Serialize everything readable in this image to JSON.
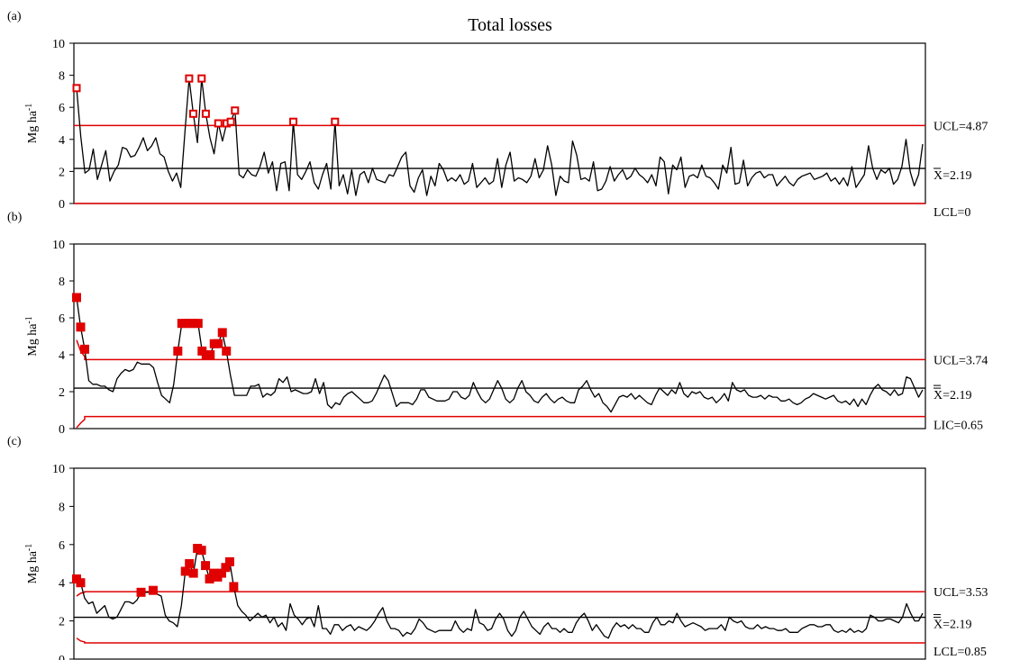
{
  "title": "Total losses",
  "colors": {
    "data": "#000000",
    "limit": "#e00000",
    "center": "#000000",
    "ooc_marker": "#e00000"
  },
  "chart_data": [
    {
      "panel_label": "(a)",
      "type": "line",
      "ylabel": "Mg ha-1",
      "ylim": [
        0,
        10
      ],
      "yticks": [
        "0",
        "2",
        "4",
        "6",
        "8",
        "10"
      ],
      "ucl": 4.87,
      "center": 2.19,
      "lcl": 0,
      "ucl_label": "UCL=4.87",
      "center_label": "X=2.19",
      "lcl_label": "LCL=0",
      "marker_style": "hollow-square",
      "values": [
        7.2,
        4.2,
        1.9,
        2.1,
        3.4,
        1.5,
        2.4,
        3.3,
        1.4,
        2,
        2.4,
        3.5,
        3.4,
        2.9,
        3,
        3.5,
        4.1,
        3.3,
        3.6,
        4.1,
        3.1,
        2.9,
        2,
        1.4,
        1.9,
        1,
        4.5,
        7.8,
        5.6,
        3.8,
        7.8,
        5.6,
        4.1,
        3.1,
        5,
        3.9,
        5,
        5.1,
        5.8,
        1.8,
        1.6,
        2.1,
        1.8,
        1.7,
        2.3,
        3.2,
        1.9,
        2.6,
        0.8,
        2.5,
        2.6,
        0.8,
        5.1,
        1.8,
        1.5,
        2,
        2.6,
        1.3,
        0.9,
        1.8,
        2.5,
        0.9,
        5.1,
        1.1,
        1.8,
        0.6,
        2.1,
        0.5,
        1.8,
        2,
        1.3,
        2.2,
        1.5,
        1.4,
        1.3,
        1.8,
        1.7,
        2.3,
        2.9,
        3.2,
        1.1,
        0.7,
        1.6,
        2.1,
        0.5,
        1.7,
        1.1,
        2.5,
        2.1,
        1.4,
        1.6,
        1.4,
        1.8,
        1.2,
        1.4,
        2.5,
        1,
        1.3,
        1.6,
        1.2,
        1.4,
        2.8,
        1,
        2.4,
        3.2,
        1.4,
        1.6,
        1.5,
        1.3,
        1.7,
        2.8,
        1.6,
        2.1,
        3.6,
        2.4,
        0.5,
        1.7,
        1.4,
        1.3,
        3.9,
        3,
        1.5,
        1.6,
        1.4,
        2.6,
        0.8,
        0.9,
        1.4,
        2.3,
        1.4,
        1.8,
        2.1,
        1.5,
        1.7,
        2.2,
        1.8,
        1.6,
        1.3,
        1.8,
        1.1,
        2.9,
        2.6,
        0.6,
        2.4,
        2.1,
        2.9,
        1,
        1.7,
        1.8,
        1.6,
        2.4,
        1.7,
        1.6,
        1.3,
        0.9,
        2.4,
        1.9,
        3.5,
        1.2,
        1.3,
        2.7,
        1.1,
        1.6,
        1.9,
        2,
        1.6,
        1.8,
        1.8,
        1.1,
        1.4,
        1.7,
        1.3,
        1.1,
        1.5,
        1.7,
        1.8,
        1.9,
        1.5,
        1.6,
        1.7,
        1.9,
        1.4,
        1.6,
        1.2,
        1.6,
        1.1,
        2.3,
        1,
        1.4,
        1.8,
        3.6,
        2.2,
        1.5,
        2.1,
        1.9,
        2.2,
        1.2,
        1.5,
        2.3,
        4,
        2,
        1.1,
        1.8,
        3.7
      ],
      "out_of_control_indices": [
        0,
        27,
        28,
        30,
        31,
        34,
        36,
        37,
        38,
        52,
        62
      ]
    },
    {
      "panel_label": "(b)",
      "type": "line",
      "ylabel": "Mg ha-1",
      "ylim": [
        0,
        10
      ],
      "yticks": [
        "0",
        "2",
        "4",
        "6",
        "8",
        "10"
      ],
      "ucl": 3.74,
      "center": 2.19,
      "lcl": 0.65,
      "ucl_label": "UCL=3.74",
      "center_label": "X=2.19",
      "lcl_label": "LIC=0.65",
      "ucl_start_curve": [
        4.8,
        4.2,
        3.9
      ],
      "lcl_start_curve": [
        0.05,
        0.3,
        0.5
      ],
      "marker_style": "filled-square",
      "values": [
        7.1,
        5.5,
        4.3,
        2.6,
        2.4,
        2.4,
        2.3,
        2.3,
        2.1,
        2,
        2.7,
        3,
        3.2,
        3.1,
        3.2,
        3.6,
        3.5,
        3.5,
        3.5,
        3.3,
        2.5,
        1.8,
        1.6,
        1.4,
        2.4,
        4.2,
        5.7,
        5.7,
        5.7,
        5.7,
        5.7,
        4.2,
        4.0,
        4.0,
        4.6,
        4.6,
        5.2,
        4.2,
        2.9,
        1.8,
        1.8,
        1.8,
        1.8,
        2.3,
        2.3,
        2.4,
        1.7,
        1.9,
        1.8,
        2,
        2.7,
        2.5,
        2.8,
        2,
        2.1,
        2,
        1.9,
        1.9,
        2,
        2.7,
        1.9,
        2.5,
        1.3,
        1.1,
        1.4,
        1.3,
        1.7,
        1.9,
        2,
        1.8,
        1.6,
        1.4,
        1.4,
        1.5,
        1.9,
        2.4,
        2.9,
        2.6,
        1.9,
        1.2,
        1.4,
        1.4,
        1.4,
        1.3,
        1.6,
        2.1,
        2.1,
        1.7,
        1.6,
        1.5,
        1.5,
        1.5,
        1.6,
        2,
        2,
        1.7,
        1.6,
        1.8,
        2.5,
        2,
        1.6,
        1.4,
        1.6,
        2.1,
        2.6,
        2.2,
        1.6,
        1.4,
        1.6,
        2.2,
        2.6,
        2,
        1.8,
        1.5,
        1.4,
        1.7,
        1.9,
        1.6,
        1.4,
        1.6,
        1.7,
        1.5,
        1.4,
        1.4,
        2.1,
        2.3,
        2.6,
        2.1,
        1.7,
        1.9,
        1.4,
        1.2,
        0.9,
        1.3,
        1.7,
        1.8,
        1.7,
        1.9,
        1.6,
        1.8,
        1.6,
        1.4,
        1.3,
        1.8,
        2.2,
        2,
        1.8,
        2.1,
        1.9,
        2.5,
        1.9,
        1.7,
        2,
        1.9,
        2,
        1.7,
        1.6,
        1.7,
        1.4,
        1.6,
        1.9,
        1.5,
        2.5,
        2.1,
        2,
        2.1,
        1.8,
        1.7,
        1.7,
        1.8,
        1.6,
        1.8,
        1.7,
        1.7,
        1.5,
        1.5,
        1.6,
        1.4,
        1.3,
        1.4,
        1.6,
        1.7,
        1.9,
        1.8,
        1.7,
        1.6,
        1.7,
        1.8,
        1.5,
        1.4,
        1.5,
        1.3,
        1.6,
        1.2,
        1.6,
        1.3,
        1.8,
        2.2,
        2.4,
        2.1,
        2,
        1.8,
        2.1,
        1.8,
        1.9,
        2.8,
        2.7,
        2.2,
        1.7,
        2.1
      ],
      "out_of_control_indices": [
        0,
        1,
        2,
        25,
        26,
        27,
        28,
        29,
        30,
        31,
        32,
        33,
        34,
        35,
        36,
        37
      ]
    },
    {
      "panel_label": "(c)",
      "type": "line",
      "ylabel": "Mg ha-1",
      "ylim": [
        0,
        10
      ],
      "yticks": [
        "0",
        "2",
        "4",
        "6",
        "8",
        "10"
      ],
      "ucl": 3.53,
      "center": 2.19,
      "lcl": 0.85,
      "ucl_label": "UCL=3.53",
      "center_label": "X=2.19",
      "lcl_label": "LCL=0.85",
      "ucl_start_curve": [
        3.3,
        3.45,
        3.5
      ],
      "lcl_start_curve": [
        1.1,
        0.95,
        0.9
      ],
      "marker_style": "filled-square",
      "values": [
        4.2,
        4.0,
        3.2,
        2.9,
        3.0,
        2.4,
        2.6,
        2.8,
        2.2,
        2.1,
        2.2,
        2.6,
        3.0,
        3.0,
        2.9,
        3.1,
        3.5,
        3.5,
        3.5,
        3.6,
        3.4,
        3.3,
        2.3,
        2.0,
        1.9,
        1.7,
        2.8,
        4.6,
        5.0,
        4.5,
        5.8,
        5.7,
        4.9,
        4.2,
        4.5,
        4.3,
        4.5,
        4.8,
        5.1,
        3.8,
        2.8,
        2.5,
        2.3,
        2.0,
        2.2,
        2.4,
        2.2,
        2.3,
        1.9,
        2.2,
        1.7,
        1.9,
        1.5,
        2.9,
        2.3,
        2.1,
        1.8,
        2.1,
        2.2,
        1.7,
        2.8,
        1.6,
        1.6,
        1.3,
        1.8,
        1.8,
        1.5,
        1.7,
        1.8,
        1.5,
        1.7,
        1.6,
        1.5,
        1.7,
        2.0,
        2.4,
        2.7,
        2.0,
        1.6,
        1.6,
        1.5,
        1.2,
        1.4,
        1.3,
        1.6,
        2.1,
        1.9,
        1.6,
        1.5,
        1.4,
        1.5,
        1.5,
        1.5,
        1.5,
        2.0,
        1.6,
        1.4,
        1.6,
        1.5,
        2.6,
        1.9,
        1.8,
        1.5,
        1.6,
        2.1,
        2.4,
        2.1,
        1.5,
        1.2,
        1.5,
        2.2,
        2.5,
        2.1,
        1.7,
        1.5,
        1.3,
        1.7,
        1.9,
        1.6,
        1.6,
        1.4,
        1.6,
        1.4,
        1.4,
        1.9,
        2.2,
        2.4,
        2.0,
        1.5,
        1.8,
        1.5,
        1.2,
        1.1,
        1.6,
        1.9,
        1.7,
        1.8,
        1.6,
        1.8,
        1.6,
        1.6,
        1.4,
        1.4,
        1.9,
        2.2,
        1.8,
        1.8,
        2.0,
        1.9,
        2.4,
        2.0,
        1.7,
        1.8,
        1.9,
        1.8,
        1.7,
        1.5,
        1.6,
        1.6,
        1.6,
        1.8,
        1.5,
        2.2,
        2.0,
        1.9,
        2.0,
        1.7,
        1.6,
        1.6,
        1.8,
        1.6,
        1.7,
        1.6,
        1.6,
        1.5,
        1.5,
        1.6,
        1.4,
        1.4,
        1.4,
        1.6,
        1.7,
        1.8,
        1.8,
        1.7,
        1.7,
        1.8,
        1.8,
        1.5,
        1.4,
        1.5,
        1.4,
        1.6,
        1.4,
        1.5,
        1.4,
        1.6,
        2.3,
        2.2,
        2.0,
        2.0,
        2.1,
        2.1,
        2.0,
        1.9,
        2.2,
        2.9,
        2.4,
        2.0,
        2.0,
        2.4
      ],
      "out_of_control_indices": [
        0,
        1,
        16,
        19,
        27,
        28,
        29,
        30,
        31,
        32,
        33,
        34,
        35,
        36,
        37,
        38,
        39
      ]
    }
  ]
}
